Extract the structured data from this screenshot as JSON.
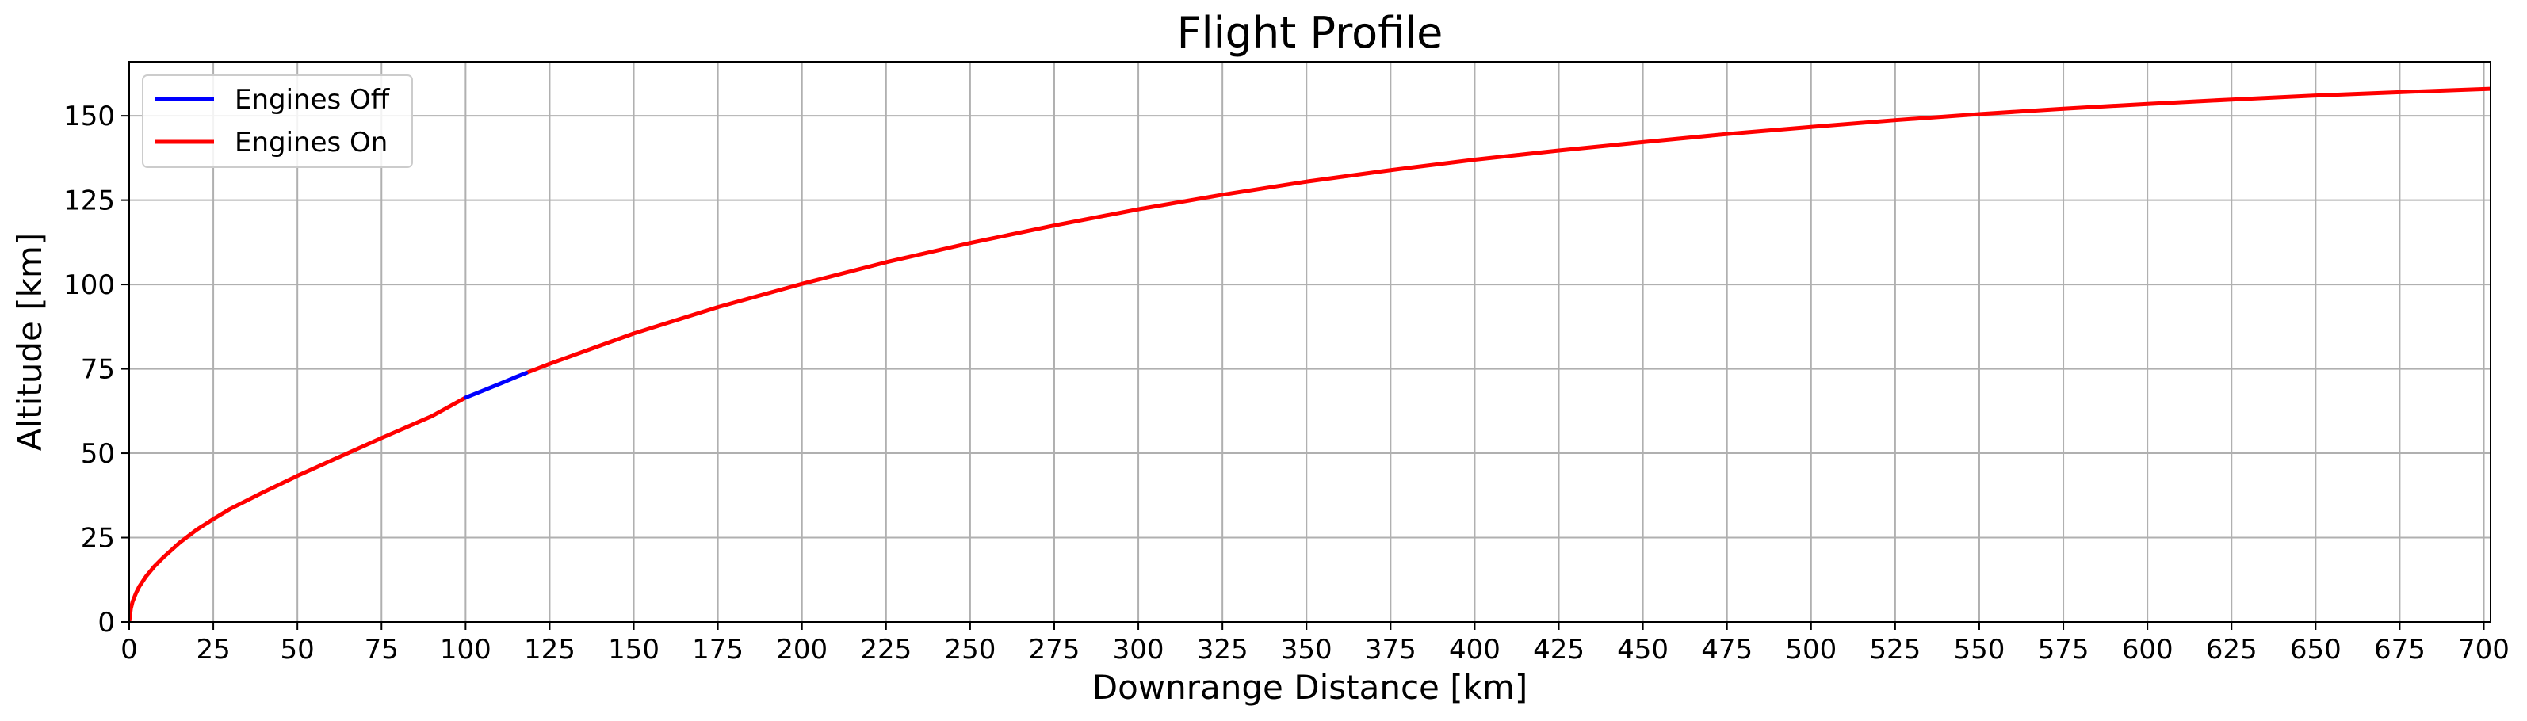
{
  "chart_data": {
    "type": "line",
    "title": "Flight Profile",
    "xlabel": "Downrange Distance [km]",
    "ylabel": "Altitude [km]",
    "xlim": [
      0,
      702
    ],
    "ylim": [
      0,
      166
    ],
    "xticks": [
      0,
      25,
      50,
      75,
      100,
      125,
      150,
      175,
      200,
      225,
      250,
      275,
      300,
      325,
      350,
      375,
      400,
      425,
      450,
      475,
      500,
      525,
      550,
      575,
      600,
      625,
      650,
      675,
      700
    ],
    "yticks": [
      0,
      25,
      50,
      75,
      100,
      125,
      150
    ],
    "grid": true,
    "legend_position": "top-left",
    "series": [
      {
        "name": "Engines Off",
        "color": "#0000ff",
        "x": [
          100,
          105,
          110,
          115,
          118
        ],
        "y": [
          66.5,
          68.5,
          70.5,
          72.6,
          73.8
        ]
      },
      {
        "name": "Engines On",
        "color": "#ff0000",
        "x": [
          0,
          0.5,
          1,
          2,
          3,
          5,
          7.5,
          10,
          15,
          20,
          25,
          30,
          40,
          50,
          60,
          75,
          90,
          100
        ],
        "y": [
          0,
          4,
          6,
          8.5,
          10.5,
          13.5,
          16.5,
          19,
          23.5,
          27.3,
          30.5,
          33.5,
          38.5,
          43.3,
          47.8,
          54.5,
          61,
          66.5
        ]
      },
      {
        "name": "Engines On",
        "color": "#ff0000",
        "x": [
          118,
          125,
          150,
          175,
          200,
          225,
          250,
          275,
          300,
          325,
          350,
          375,
          400,
          425,
          450,
          475,
          500,
          525,
          550,
          575,
          600,
          625,
          650,
          675,
          702
        ],
        "y": [
          73.8,
          76.5,
          85.5,
          93.3,
          100.2,
          106.6,
          112.3,
          117.5,
          122.3,
          126.6,
          130.5,
          133.9,
          137,
          139.7,
          142.2,
          144.6,
          146.7,
          148.7,
          150.5,
          152.1,
          153.5,
          154.8,
          156,
          157,
          158
        ]
      }
    ]
  }
}
